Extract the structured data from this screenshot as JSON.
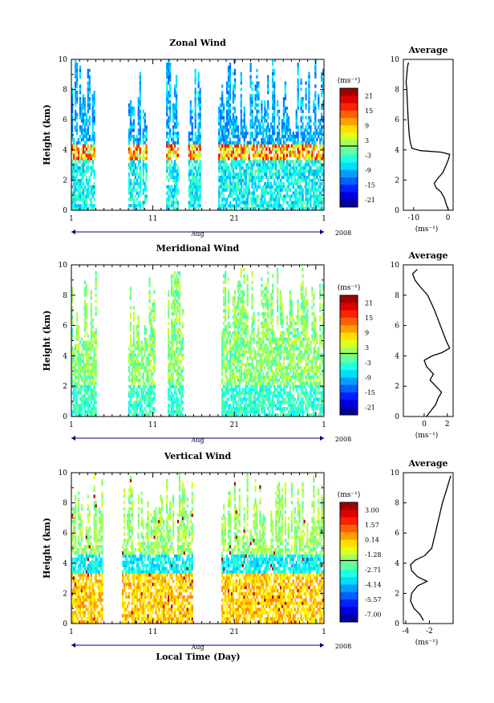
{
  "chart_data": [
    {
      "type": "heatmap",
      "title": "Zonal Wind",
      "ylabel": "Height (km)",
      "xlabel": "Aug",
      "year": "2008",
      "xticks": [
        "1",
        "11",
        "21",
        "1"
      ],
      "ylim": [
        0,
        10
      ],
      "yticks": [
        0,
        2,
        4,
        6,
        8,
        10
      ],
      "colorbar": {
        "unit": "(ms⁻¹)",
        "labels": [
          "21",
          "15",
          "9",
          "3",
          "-3",
          "-9",
          "-15",
          "-21"
        ],
        "range": [
          -24,
          24
        ]
      },
      "average": {
        "title": "Average",
        "xlabel": "(ms⁻¹)",
        "xticks": [
          "-10",
          "0"
        ],
        "xlim": [
          -13,
          1.5
        ],
        "profile": [
          [
            0.2,
            0.0
          ],
          [
            -0.5,
            0.4
          ],
          [
            -1.0,
            0.8
          ],
          [
            -2.0,
            1.2
          ],
          [
            -3.5,
            1.5
          ],
          [
            -4.0,
            1.8
          ],
          [
            -3.0,
            2.1
          ],
          [
            -1.5,
            2.5
          ],
          [
            -0.5,
            3.0
          ],
          [
            0.2,
            3.4
          ],
          [
            0.5,
            3.7
          ],
          [
            -2.0,
            3.85
          ],
          [
            -8.0,
            3.95
          ],
          [
            -10.5,
            4.1
          ],
          [
            -11.0,
            4.5
          ],
          [
            -11.3,
            5.0
          ],
          [
            -11.6,
            6.0
          ],
          [
            -11.8,
            7.0
          ],
          [
            -12.0,
            8.0
          ],
          [
            -12.2,
            8.5
          ],
          [
            -12.0,
            9.0
          ],
          [
            -11.8,
            9.5
          ],
          [
            -11.5,
            9.8
          ]
        ]
      }
    },
    {
      "type": "heatmap",
      "title": "Meridional Wind",
      "ylabel": "Height (km)",
      "xlabel": "Aug",
      "year": "2008",
      "xticks": [
        "1",
        "11",
        "21",
        "1"
      ],
      "ylim": [
        0,
        10
      ],
      "yticks": [
        0,
        2,
        4,
        6,
        8,
        10
      ],
      "colorbar": {
        "unit": "(ms⁻¹)",
        "labels": [
          "21",
          "15",
          "9",
          "3",
          "-3",
          "-9",
          "-15",
          "-21"
        ],
        "range": [
          -24,
          24
        ]
      },
      "average": {
        "title": "Average",
        "xlabel": "(ms⁻¹)",
        "xticks": [
          "0",
          "2"
        ],
        "xlim": [
          -1.8,
          2.5
        ],
        "profile": [
          [
            0.2,
            0.0
          ],
          [
            0.6,
            0.4
          ],
          [
            1.0,
            0.8
          ],
          [
            1.2,
            1.2
          ],
          [
            1.5,
            1.6
          ],
          [
            1.0,
            2.0
          ],
          [
            0.5,
            2.4
          ],
          [
            0.8,
            2.8
          ],
          [
            0.2,
            3.3
          ],
          [
            0.0,
            3.7
          ],
          [
            0.7,
            4.0
          ],
          [
            1.5,
            4.2
          ],
          [
            2.2,
            4.5
          ],
          [
            1.9,
            5.0
          ],
          [
            1.4,
            6.0
          ],
          [
            0.9,
            7.0
          ],
          [
            0.3,
            8.0
          ],
          [
            -0.4,
            8.6
          ],
          [
            -0.8,
            9.0
          ],
          [
            -1.0,
            9.4
          ],
          [
            -0.6,
            9.7
          ]
        ]
      }
    },
    {
      "type": "heatmap",
      "title": "Vertical Wind",
      "ylabel": "Height (km)",
      "xlabel": "Aug",
      "year": "2008",
      "xticks": [
        "1",
        "11",
        "21",
        "1"
      ],
      "ylim": [
        0,
        10
      ],
      "yticks": [
        0,
        2,
        4,
        6,
        8,
        10
      ],
      "colorbar": {
        "unit": "(ms⁻¹)",
        "labels": [
          "3.00",
          "1.57",
          "0.14",
          "-1.28",
          "-2.71",
          "-4.14",
          "-5.57",
          "-7.00"
        ],
        "range": [
          -7.7,
          3.7
        ]
      },
      "average": {
        "title": "Average",
        "xlabel": "(ms⁻¹)",
        "xticks": [
          "-4",
          "-2"
        ],
        "xlim": [
          -4.2,
          0.0
        ],
        "profile": [
          [
            -2.5,
            0.2
          ],
          [
            -2.8,
            0.6
          ],
          [
            -3.3,
            1.0
          ],
          [
            -3.6,
            1.5
          ],
          [
            -3.5,
            2.0
          ],
          [
            -3.0,
            2.5
          ],
          [
            -2.2,
            2.8
          ],
          [
            -3.0,
            3.1
          ],
          [
            -3.5,
            3.5
          ],
          [
            -3.6,
            3.9
          ],
          [
            -3.2,
            4.2
          ],
          [
            -2.4,
            4.5
          ],
          [
            -1.8,
            5.0
          ],
          [
            -1.5,
            6.0
          ],
          [
            -1.2,
            7.0
          ],
          [
            -0.9,
            8.0
          ],
          [
            -0.5,
            9.0
          ],
          [
            -0.2,
            9.8
          ]
        ]
      }
    }
  ],
  "xlabel_bottom": "Local Time (Day)"
}
